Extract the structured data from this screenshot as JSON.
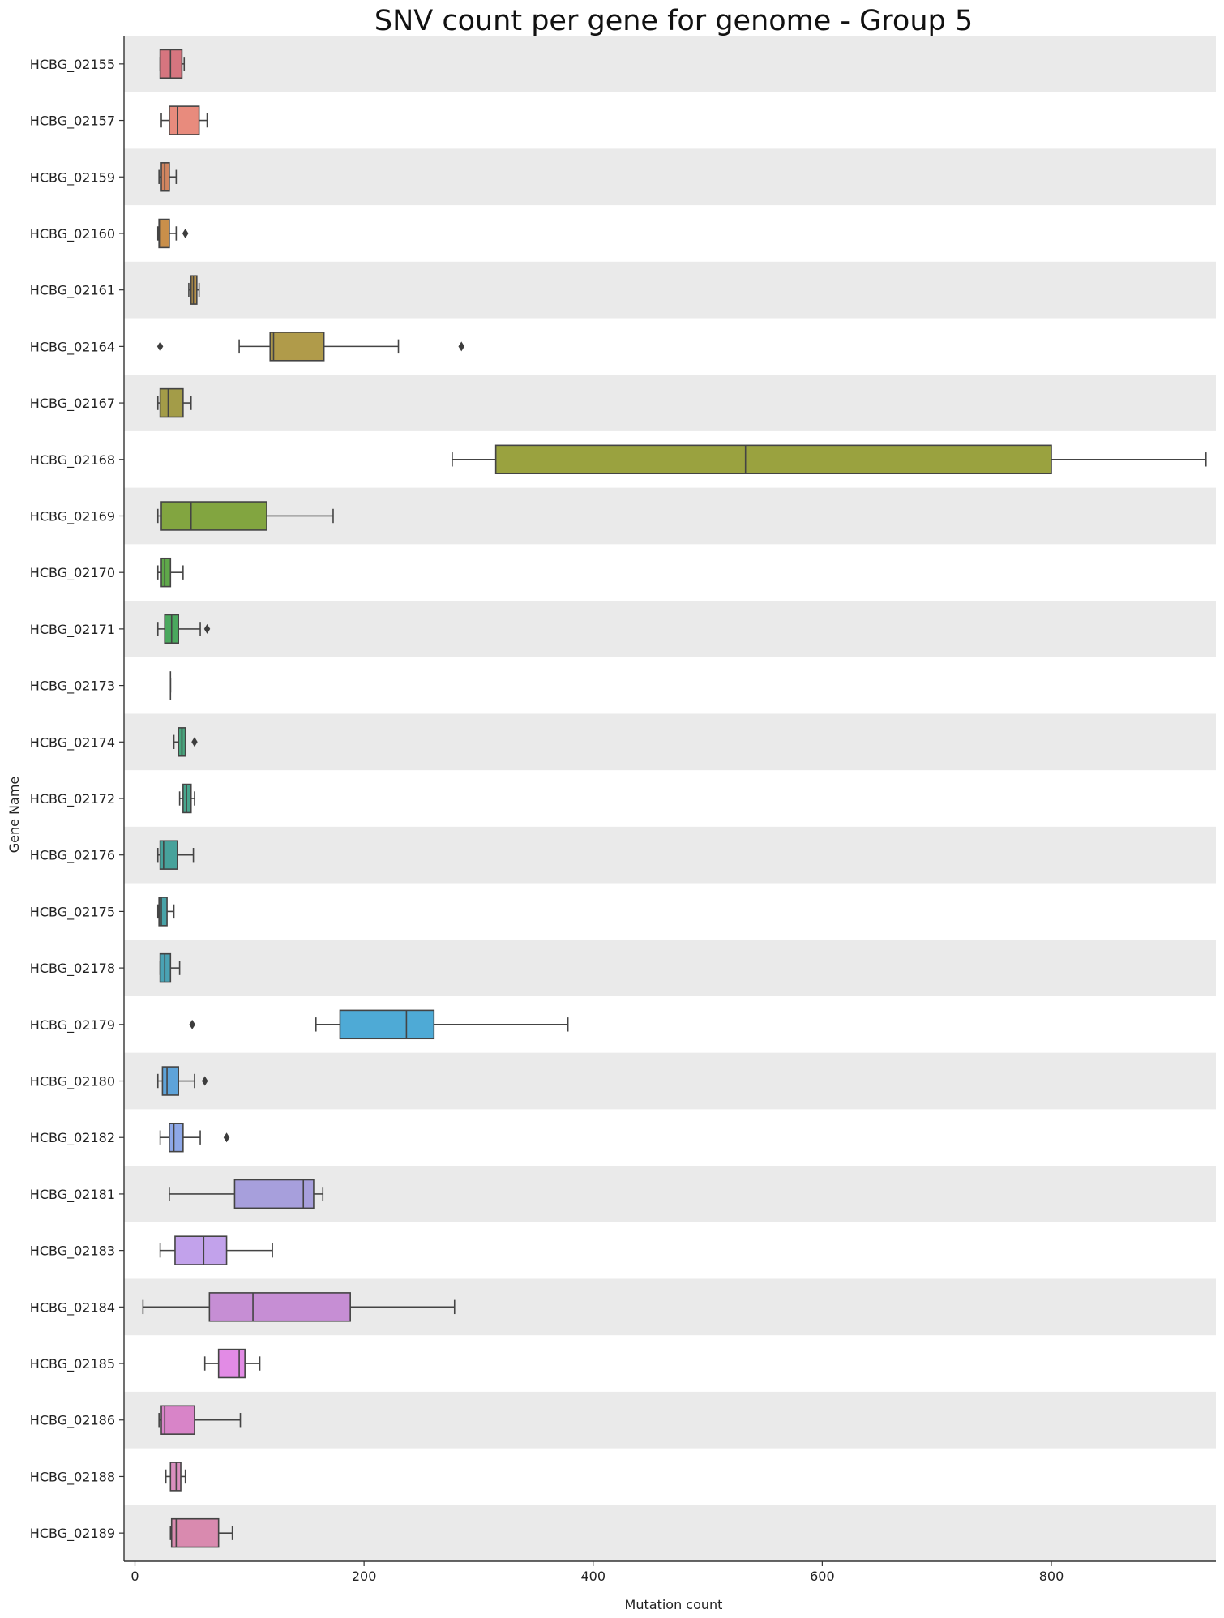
{
  "chart_data": {
    "type": "boxplot",
    "orientation": "horizontal",
    "title": "SNV count per gene for genome - Group 5",
    "xlabel": "Mutation count",
    "ylabel": "Gene Name",
    "xlim": [
      -2,
      945
    ],
    "xticks": [
      0,
      200,
      400,
      600,
      800
    ],
    "grid": false,
    "row_band_color": "#eaeaea",
    "categories": [
      "HCBG_02155",
      "HCBG_02157",
      "HCBG_02159",
      "HCBG_02160",
      "HCBG_02161",
      "HCBG_02164",
      "HCBG_02167",
      "HCBG_02168",
      "HCBG_02169",
      "HCBG_02170",
      "HCBG_02171",
      "HCBG_02173",
      "HCBG_02174",
      "HCBG_02172",
      "HCBG_02176",
      "HCBG_02175",
      "HCBG_02178",
      "HCBG_02179",
      "HCBG_02180",
      "HCBG_02182",
      "HCBG_02181",
      "HCBG_02183",
      "HCBG_02184",
      "HCBG_02185",
      "HCBG_02186",
      "HCBG_02188",
      "HCBG_02189"
    ],
    "boxes": [
      {
        "gene": "HCBG_02155",
        "wlo": 22,
        "q1": 22,
        "med": 31,
        "q3": 41,
        "whi": 43,
        "outliers": [],
        "color": "#d6757f"
      },
      {
        "gene": "HCBG_02157",
        "wlo": 23,
        "q1": 30,
        "med": 37,
        "q3": 56,
        "whi": 63,
        "outliers": [],
        "color": "#e88b7d"
      },
      {
        "gene": "HCBG_02159",
        "wlo": 21,
        "q1": 23,
        "med": 26,
        "q3": 30,
        "whi": 36,
        "outliers": [],
        "color": "#d18560"
      },
      {
        "gene": "HCBG_02160",
        "wlo": 20,
        "q1": 21,
        "med": 22,
        "q3": 30,
        "whi": 36,
        "outliers": [
          44
        ],
        "color": "#c98f4a"
      },
      {
        "gene": "HCBG_02161",
        "wlo": 47,
        "q1": 49,
        "med": 51,
        "q3": 54,
        "whi": 56,
        "outliers": [],
        "color": "#b8924a"
      },
      {
        "gene": "HCBG_02164",
        "wlo": 91,
        "q1": 118,
        "med": 121,
        "q3": 165,
        "whi": 230,
        "outliers": [
          22,
          285
        ],
        "color": "#b09b4a"
      },
      {
        "gene": "HCBG_02167",
        "wlo": 20,
        "q1": 22,
        "med": 29,
        "q3": 42,
        "whi": 49,
        "outliers": [],
        "color": "#a39c48"
      },
      {
        "gene": "HCBG_02168",
        "wlo": 277,
        "q1": 315,
        "med": 533,
        "q3": 800,
        "whi": 935,
        "outliers": [],
        "color": "#9aa23f"
      },
      {
        "gene": "HCBG_02169",
        "wlo": 20,
        "q1": 23,
        "med": 49,
        "q3": 115,
        "whi": 173,
        "outliers": [],
        "color": "#82a540"
      },
      {
        "gene": "HCBG_02170",
        "wlo": 20,
        "q1": 23,
        "med": 26,
        "q3": 31,
        "whi": 42,
        "outliers": [],
        "color": "#5fa84a"
      },
      {
        "gene": "HCBG_02171",
        "wlo": 20,
        "q1": 26,
        "med": 32,
        "q3": 38,
        "whi": 57,
        "outliers": [
          63
        ],
        "color": "#4aa85e"
      },
      {
        "gene": "HCBG_02173",
        "wlo": 31,
        "q1": 31,
        "med": 31,
        "q3": 31,
        "whi": 31,
        "outliers": [],
        "color": "#46a870"
      },
      {
        "gene": "HCBG_02174",
        "wlo": 34,
        "q1": 38,
        "med": 41,
        "q3": 44,
        "whi": 44,
        "outliers": [
          52
        ],
        "color": "#48a57d"
      },
      {
        "gene": "HCBG_02172",
        "wlo": 39,
        "q1": 42,
        "med": 45,
        "q3": 49,
        "whi": 52,
        "outliers": [],
        "color": "#48a58d"
      },
      {
        "gene": "HCBG_02176",
        "wlo": 20,
        "q1": 22,
        "med": 25,
        "q3": 37,
        "whi": 51,
        "outliers": [],
        "color": "#47a29b"
      },
      {
        "gene": "HCBG_02175",
        "wlo": 20,
        "q1": 21,
        "med": 23,
        "q3": 28,
        "whi": 34,
        "outliers": [],
        "color": "#48a3a8"
      },
      {
        "gene": "HCBG_02178",
        "wlo": 22,
        "q1": 22,
        "med": 26,
        "q3": 31,
        "whi": 39,
        "outliers": [],
        "color": "#4aa2b4"
      },
      {
        "gene": "HCBG_02179",
        "wlo": 158,
        "q1": 179,
        "med": 237,
        "q3": 261,
        "whi": 378,
        "outliers": [
          50
        ],
        "color": "#4eaad6"
      },
      {
        "gene": "HCBG_02180",
        "wlo": 20,
        "q1": 24,
        "med": 28,
        "q3": 38,
        "whi": 52,
        "outliers": [
          61
        ],
        "color": "#5ea3d9"
      },
      {
        "gene": "HCBG_02182",
        "wlo": 22,
        "q1": 30,
        "med": 34,
        "q3": 42,
        "whi": 57,
        "outliers": [
          80
        ],
        "color": "#8ea8e8"
      },
      {
        "gene": "HCBG_02181",
        "wlo": 30,
        "q1": 87,
        "med": 147,
        "q3": 156,
        "whi": 164,
        "outliers": [],
        "color": "#a79fdc"
      },
      {
        "gene": "HCBG_02183",
        "wlo": 22,
        "q1": 35,
        "med": 60,
        "q3": 80,
        "whi": 120,
        "outliers": [],
        "color": "#c2a2eb"
      },
      {
        "gene": "HCBG_02184",
        "wlo": 7,
        "q1": 65,
        "med": 103,
        "q3": 188,
        "whi": 279,
        "outliers": [],
        "color": "#c68ed4"
      },
      {
        "gene": "HCBG_02185",
        "wlo": 61,
        "q1": 73,
        "med": 91,
        "q3": 96,
        "whi": 109,
        "outliers": [],
        "color": "#e28be5"
      },
      {
        "gene": "HCBG_02186",
        "wlo": 21,
        "q1": 23,
        "med": 26,
        "q3": 52,
        "whi": 92,
        "outliers": [],
        "color": "#d884c8"
      },
      {
        "gene": "HCBG_02188",
        "wlo": 27,
        "q1": 31,
        "med": 36,
        "q3": 40,
        "whi": 44,
        "outliers": [],
        "color": "#d98fbf"
      },
      {
        "gene": "HCBG_02189",
        "wlo": 31,
        "q1": 32,
        "med": 36,
        "q3": 73,
        "whi": 85,
        "outliers": [],
        "color": "#d98aaf"
      }
    ]
  }
}
